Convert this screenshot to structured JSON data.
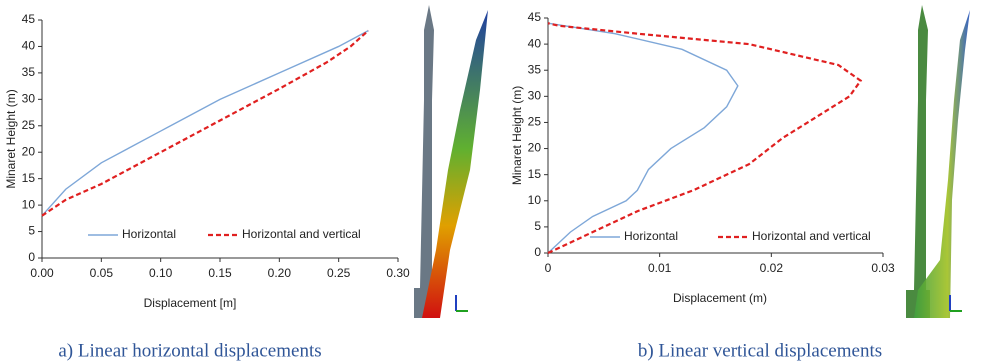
{
  "chart_data": [
    {
      "type": "line",
      "caption": "a)   Linear horizontal displacements",
      "xlabel": "Displacement [m]",
      "ylabel": "Minaret Height (m)",
      "xlim": [
        0,
        0.3
      ],
      "xticks": [
        {
          "value": 0,
          "label": "0.00"
        },
        {
          "value": 0.05,
          "label": "0.05"
        },
        {
          "value": 0.1,
          "label": "0.10"
        },
        {
          "value": 0.15,
          "label": "0.15"
        },
        {
          "value": 0.2,
          "label": "0.20"
        },
        {
          "value": 0.25,
          "label": "0.25"
        },
        {
          "value": 0.3,
          "label": "0.30"
        }
      ],
      "ylim": [
        0,
        45
      ],
      "yticks": [
        0,
        5,
        10,
        15,
        20,
        25,
        30,
        35,
        40,
        45
      ],
      "series": [
        {
          "name": "Horizontal",
          "color": "#7ea7d8",
          "dash": false,
          "x": [
            0,
            0.02,
            0.05,
            0.1,
            0.15,
            0.2,
            0.25,
            0.275
          ],
          "values": [
            8,
            13,
            18,
            24,
            30,
            35,
            40,
            43
          ]
        },
        {
          "name": "Horizontal and vertical",
          "color": "#e02020",
          "dash": true,
          "x": [
            0,
            0.02,
            0.05,
            0.1,
            0.15,
            0.2,
            0.24,
            0.26,
            0.275
          ],
          "values": [
            8,
            11,
            14,
            20,
            26,
            32,
            37,
            40,
            43
          ]
        }
      ]
    },
    {
      "type": "line",
      "caption": "b) Linear vertical displacements",
      "xlabel": "Displacement (m)",
      "ylabel": "Minaret Height (m)",
      "xlim": [
        0,
        0.03
      ],
      "xticks": [
        0,
        0.01,
        0.02,
        0.03
      ],
      "ylim": [
        0,
        45
      ],
      "yticks": [
        0,
        5,
        10,
        15,
        20,
        25,
        30,
        35,
        40,
        45
      ],
      "series": [
        {
          "name": "Horizontal",
          "color": "#7ea7d8",
          "dash": false,
          "x": [
            0,
            0.002,
            0.004,
            0.007,
            0.008,
            0.009,
            0.011,
            0.014,
            0.016,
            0.017,
            0.016,
            0.012,
            0.006,
            0
          ],
          "values": [
            0,
            4,
            7,
            10,
            12,
            16,
            20,
            24,
            28,
            32,
            35,
            39,
            42,
            44
          ]
        },
        {
          "name": "Horizontal and vertical",
          "color": "#e02020",
          "dash": true,
          "x": [
            0,
            0.003,
            0.008,
            0.013,
            0.018,
            0.021,
            0.024,
            0.027,
            0.028,
            0.026,
            0.018,
            0.008,
            0.001,
            0
          ],
          "values": [
            0,
            3,
            8,
            12,
            17,
            22,
            26,
            30,
            33,
            36,
            40,
            42,
            43.5,
            44
          ]
        }
      ]
    }
  ]
}
